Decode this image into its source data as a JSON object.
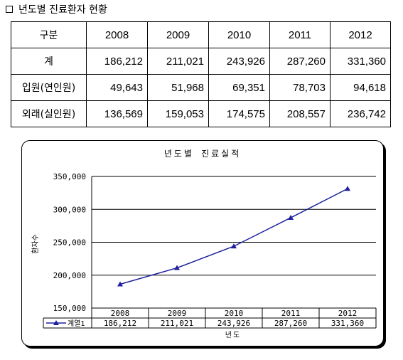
{
  "heading": {
    "text": "년도별 진료환자 현황"
  },
  "table": {
    "header": [
      "구분",
      "2008",
      "2009",
      "2010",
      "2011",
      "2012"
    ],
    "rows": [
      {
        "label": "계",
        "values": [
          "186,212",
          "211,021",
          "243,926",
          "287,260",
          "331,360"
        ]
      },
      {
        "label": "입원(연인원)",
        "values": [
          "49,643",
          "51,968",
          "69,351",
          "78,703",
          "94,618"
        ]
      },
      {
        "label": "외래(실인원)",
        "values": [
          "136,569",
          "159,053",
          "174,575",
          "208,557",
          "236,742"
        ]
      }
    ]
  },
  "chart_data": {
    "type": "line",
    "title": "년도별 진료실적",
    "xlabel": "년도",
    "ylabel": "환자수",
    "categories": [
      "2008",
      "2009",
      "2010",
      "2011",
      "2012"
    ],
    "series": [
      {
        "name": "계열1",
        "values": [
          186212,
          211021,
          243926,
          287260,
          331360
        ],
        "color": "#1f1fa0",
        "labels": [
          "186,212",
          "211,021",
          "243,926",
          "287,260",
          "331,360"
        ]
      }
    ],
    "ylim": [
      150000,
      350000
    ],
    "yticks": [
      "150,000",
      "200,000",
      "250,000",
      "300,000",
      "350,000"
    ],
    "grid": true,
    "legend": "data-table-left"
  }
}
